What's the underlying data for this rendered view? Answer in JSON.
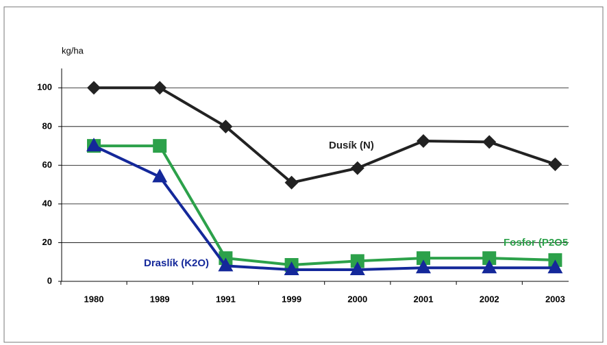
{
  "chart_data": {
    "type": "line",
    "y_axis_label": "kg/ha",
    "categories": [
      "1980",
      "1989",
      "1991",
      "1999",
      "2000",
      "2001",
      "2002",
      "2003"
    ],
    "series": [
      {
        "name": "Dusík (N)",
        "color": "#222222",
        "marker": "diamond",
        "values": [
          100,
          100,
          80,
          51,
          58.5,
          72.5,
          72,
          60.5
        ]
      },
      {
        "name": "Fosfor (P2O5",
        "color": "#2ca14a",
        "marker": "square",
        "values": [
          70,
          70,
          12,
          8.5,
          10.5,
          12,
          12,
          11
        ]
      },
      {
        "name": "Draslík (K2O)",
        "color": "#14289a",
        "marker": "triangle",
        "values": [
          70,
          54,
          8,
          6,
          6,
          7,
          7,
          7
        ]
      }
    ],
    "ylim": [
      0,
      110
    ],
    "yticks": [
      0,
      20,
      40,
      60,
      80,
      100
    ],
    "grid": true
  }
}
